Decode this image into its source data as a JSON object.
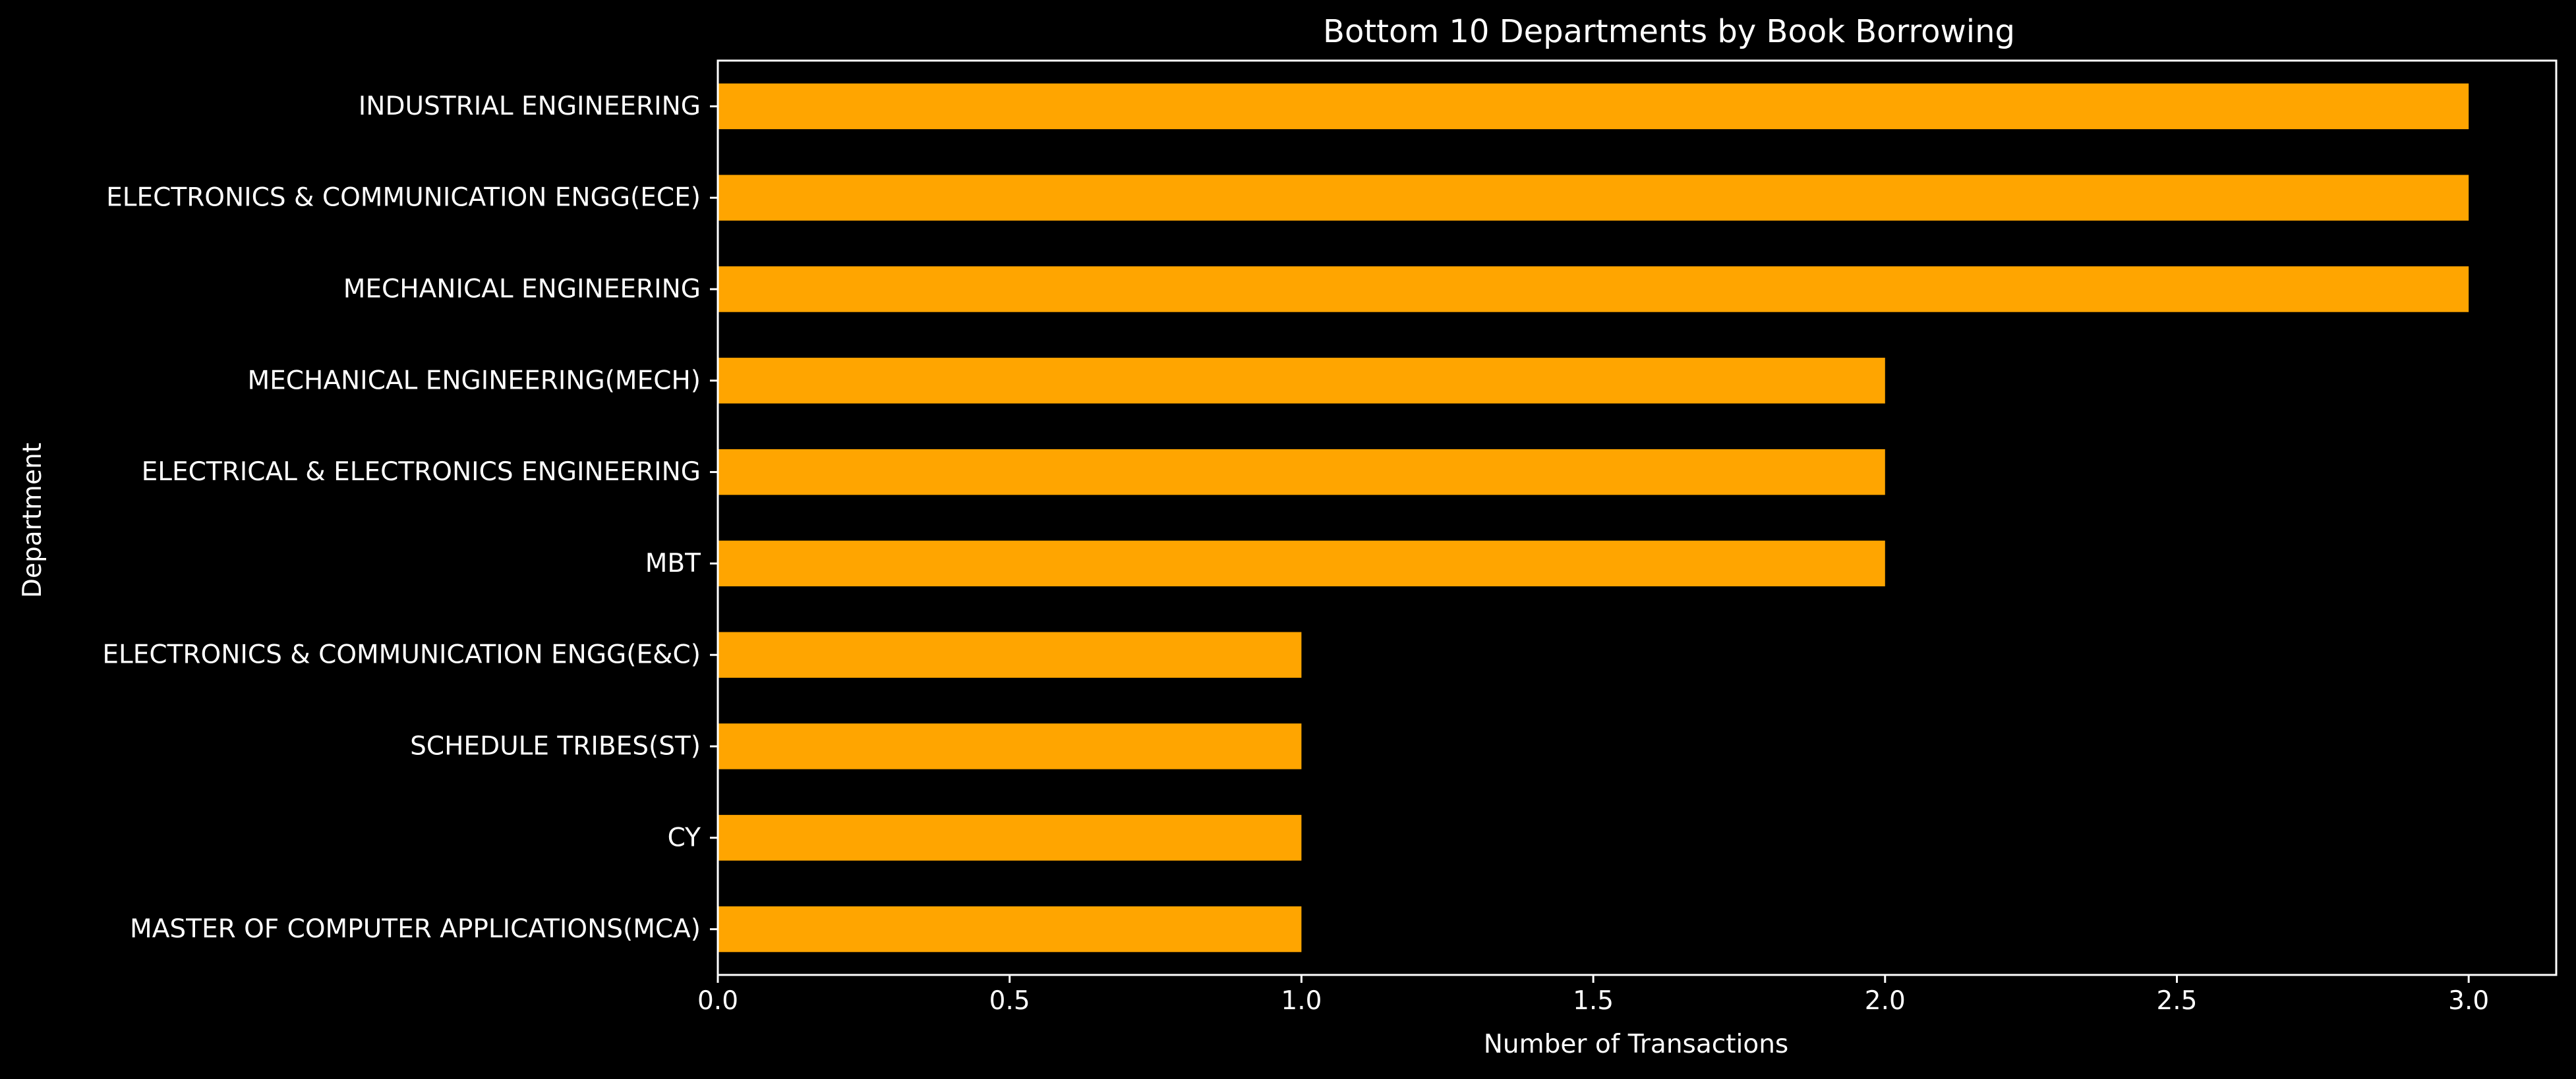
{
  "chart_data": {
    "type": "bar",
    "orientation": "horizontal",
    "title": "Bottom 10 Departments by Book Borrowing",
    "xlabel": "Number of Transactions",
    "ylabel": "Department",
    "categories": [
      "INDUSTRIAL ENGINEERING",
      "ELECTRONICS & COMMUNICATION ENGG(ECE)",
      "MECHANICAL ENGINEERING",
      "MECHANICAL ENGINEERING(MECH)",
      "ELECTRICAL & ELECTRONICS ENGINEERING",
      "MBT",
      "ELECTRONICS & COMMUNICATION ENGG(E&C)",
      "SCHEDULE TRIBES(ST)",
      "CY",
      "MASTER OF COMPUTER APPLICATIONS(MCA)"
    ],
    "values": [
      3,
      3,
      3,
      2,
      2,
      2,
      1,
      1,
      1,
      1
    ],
    "xlim": [
      0,
      3.15
    ],
    "xticks": [
      "0.0",
      "0.5",
      "1.0",
      "1.5",
      "2.0",
      "2.5",
      "3.0"
    ],
    "xtick_values": [
      0,
      0.5,
      1.0,
      1.5,
      2.0,
      2.5,
      3.0
    ],
    "grid": false,
    "colors": {
      "bar": "#ffa500",
      "background": "#000000",
      "text": "#ffffff",
      "axes": "#ffffff"
    }
  }
}
